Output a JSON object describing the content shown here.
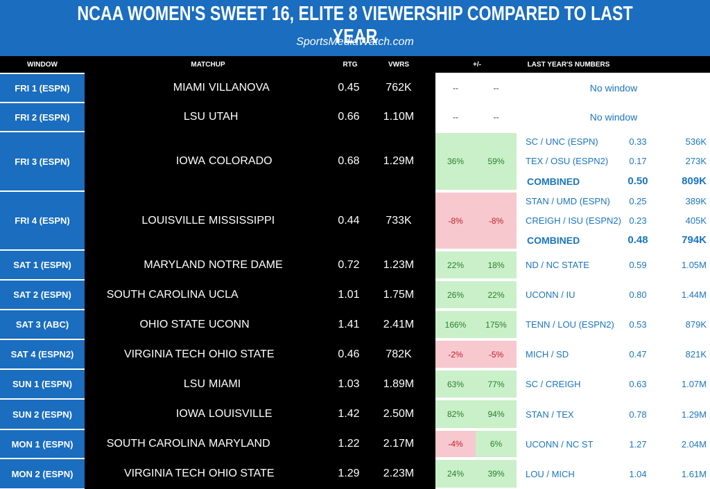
{
  "header": {
    "title": "NCAA WOMEN'S SWEET 16, ELITE 8 VIEWERSHIP COMPARED TO LAST YEAR",
    "subtitle": "SportsMediaWatch.com"
  },
  "columns": [
    "WINDOW",
    "MATCHUP",
    "RTG",
    "VWRS",
    "+/-",
    "LAST YEAR'S NUMBERS"
  ],
  "rows": [
    {
      "window": "FRI 1 (ESPN)",
      "teams": [
        "MIAMI",
        "VILLANOVA"
      ],
      "rtg": "0.45",
      "vwrs": "762K",
      "change": [
        "--",
        "--"
      ],
      "last_year_note": "No window"
    },
    {
      "window": "FRI 2 (ESPN)",
      "teams": [
        "LSU",
        "UTAH"
      ],
      "rtg": "0.66",
      "vwrs": "1.10M",
      "change": [
        "--",
        "--"
      ],
      "last_year_note": "No window"
    },
    {
      "window": "FRI 3 (ESPN)",
      "teams": [
        "IOWA",
        "COLORADO"
      ],
      "rtg": "0.68",
      "vwrs": "1.29M",
      "change": [
        "36%",
        "59%"
      ],
      "last_year": [
        {
          "label": "SC / UNC (ESPN)",
          "rtg": "0.33",
          "vwrs": "536K"
        },
        {
          "label": "TEX / OSU (ESPN2)",
          "rtg": "0.17",
          "vwrs": "273K"
        },
        {
          "label": "COMBINED",
          "rtg": "0.50",
          "vwrs": "809K"
        }
      ]
    },
    {
      "window": "FRI 4 (ESPN)",
      "teams": [
        "LOUISVILLE",
        "MISSISSIPPI"
      ],
      "rtg": "0.44",
      "vwrs": "733K",
      "change": [
        "-8%",
        "-8%"
      ],
      "last_year": [
        {
          "label": "STAN / UMD (ESPN)",
          "rtg": "0.25",
          "vwrs": "389K"
        },
        {
          "label": "CREIGH / ISU (ESPN2)",
          "rtg": "0.23",
          "vwrs": "405K"
        },
        {
          "label": "COMBINED",
          "rtg": "0.48",
          "vwrs": "794K"
        }
      ]
    },
    {
      "window": "SAT 1 (ESPN)",
      "teams": [
        "MARYLAND",
        "NOTRE DAME"
      ],
      "rtg": "0.72",
      "vwrs": "1.23M",
      "change": [
        "22%",
        "18%"
      ],
      "last_year": [
        {
          "label": "ND / NC STATE",
          "rtg": "0.59",
          "vwrs": "1.05M"
        }
      ]
    },
    {
      "window": "SAT 2 (ESPN)",
      "teams": [
        "SOUTH CAROLINA",
        "UCLA"
      ],
      "rtg": "1.01",
      "vwrs": "1.75M",
      "change": [
        "26%",
        "22%"
      ],
      "last_year": [
        {
          "label": "UCONN / IU",
          "rtg": "0.80",
          "vwrs": "1.44M"
        }
      ]
    },
    {
      "window": "SAT 3 (ABC)",
      "teams": [
        "OHIO STATE",
        "UCONN"
      ],
      "rtg": "1.41",
      "vwrs": "2.41M",
      "change": [
        "166%",
        "175%"
      ],
      "last_year": [
        {
          "label": "TENN / LOU (ESPN2)",
          "rtg": "0.53",
          "vwrs": "879K"
        }
      ]
    },
    {
      "window": "SAT 4 (ESPN2)",
      "teams": [
        "VIRGINIA TECH",
        "OHIO STATE"
      ],
      "rtg": "0.46",
      "vwrs": "782K",
      "change": [
        "-2%",
        "-5%"
      ],
      "last_year": [
        {
          "label": "MICH / SD",
          "rtg": "0.47",
          "vwrs": "821K"
        }
      ]
    },
    {
      "window": "SUN 1 (ESPN)",
      "teams": [
        "LSU",
        "MIAMI"
      ],
      "rtg": "1.03",
      "vwrs": "1.89M",
      "change": [
        "63%",
        "77%"
      ],
      "last_year": [
        {
          "label": "SC / CREIGH",
          "rtg": "0.63",
          "vwrs": "1.07M"
        }
      ]
    },
    {
      "window": "SUN 2 (ESPN)",
      "teams": [
        "IOWA",
        "LOUISVILLE"
      ],
      "rtg": "1.42",
      "vwrs": "2.50M",
      "change": [
        "82%",
        "94%"
      ],
      "last_year": [
        {
          "label": "STAN / TEX",
          "rtg": "0.78",
          "vwrs": "1.29M"
        }
      ]
    },
    {
      "window": "MON 1 (ESPN)",
      "teams": [
        "SOUTH CAROLINA",
        "MARYLAND"
      ],
      "rtg": "1.22",
      "vwrs": "2.17M",
      "change": [
        "-4%",
        "6%"
      ],
      "last_year": [
        {
          "label": "UCONN / NC ST",
          "rtg": "1.27",
          "vwrs": "2.04M"
        }
      ]
    },
    {
      "window": "MON 2 (ESPN)",
      "teams": [
        "VIRGINIA TECH",
        "OHIO STATE"
      ],
      "rtg": "1.29",
      "vwrs": "2.23M",
      "change": [
        "24%",
        "39%"
      ],
      "last_year": [
        {
          "label": "LOU / MICH",
          "rtg": "1.04",
          "vwrs": "1.61M"
        }
      ]
    }
  ]
}
